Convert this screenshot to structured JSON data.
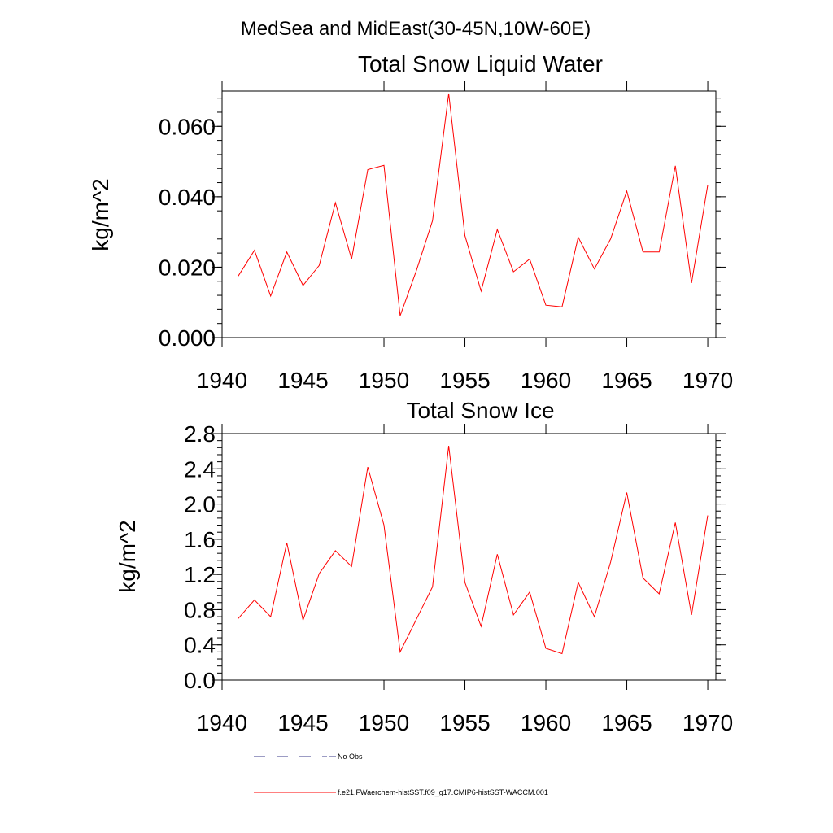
{
  "figure": {
    "main_title": "MedSea and MidEast(30-45N,10W-60E)"
  },
  "colors": {
    "model_line": "#ff0000",
    "obs_line": "#3a3a8a",
    "axis": "#000000"
  },
  "legend": {
    "placement": "bottom",
    "entries": [
      {
        "label": "No Obs",
        "style": "dashed",
        "color": "#3a3a8a"
      },
      {
        "label": "f.e21.FWaerchem-histSST.f09_g17.CMIP6-histSST-WACCM.001",
        "style": "solid",
        "color": "#ff0000"
      }
    ]
  },
  "chart_data": [
    {
      "type": "line",
      "title": "Total Snow Liquid Water",
      "xlabel": "",
      "ylabel": "kg/m^2",
      "xlim": [
        1940,
        1970.5
      ],
      "ylim": [
        0,
        0.07
      ],
      "xticks": [
        1940,
        1945,
        1950,
        1955,
        1960,
        1965,
        1970
      ],
      "xtick_labels": [
        "1940",
        "1945",
        "1950",
        "1955",
        "1960",
        "1965",
        "1970"
      ],
      "yticks": [
        0,
        0.02,
        0.04,
        0.06
      ],
      "ytick_labels": [
        "0.000",
        "0.020",
        "0.040",
        "0.060"
      ],
      "grid": false,
      "x": [
        1941,
        1942,
        1943,
        1944,
        1945,
        1946,
        1947,
        1948,
        1949,
        1950,
        1951,
        1952,
        1953,
        1954,
        1955,
        1956,
        1957,
        1958,
        1959,
        1960,
        1961,
        1962,
        1963,
        1964,
        1965,
        1966,
        1967,
        1968,
        1969,
        1970
      ],
      "series": [
        {
          "values": [
            0.0175,
            0.0248,
            0.0118,
            0.0243,
            0.0148,
            0.0205,
            0.0383,
            0.0223,
            0.0477,
            0.0489,
            0.0062,
            0.019,
            0.0332,
            0.0693,
            0.029,
            0.0132,
            0.0307,
            0.0187,
            0.0223,
            0.0092,
            0.0087,
            0.0285,
            0.0195,
            0.028,
            0.0416,
            0.0243,
            0.0243,
            0.0488,
            0.0155,
            0.0433
          ]
        }
      ]
    },
    {
      "type": "line",
      "title": "Total Snow Ice",
      "xlabel": "",
      "ylabel": "kg/m^2",
      "xlim": [
        1940,
        1970.5
      ],
      "ylim": [
        0,
        2.8
      ],
      "xticks": [
        1940,
        1945,
        1950,
        1955,
        1960,
        1965,
        1970
      ],
      "xtick_labels": [
        "1940",
        "1945",
        "1950",
        "1955",
        "1960",
        "1965",
        "1970"
      ],
      "yticks": [
        0,
        0.4,
        0.8,
        1.2,
        1.6,
        2.0,
        2.4,
        2.8
      ],
      "ytick_labels": [
        "0.0",
        "0.4",
        "0.8",
        "1.2",
        "1.6",
        "2.0",
        "2.4",
        "2.8"
      ],
      "grid": false,
      "x": [
        1941,
        1942,
        1943,
        1944,
        1945,
        1946,
        1947,
        1948,
        1949,
        1950,
        1951,
        1952,
        1953,
        1954,
        1955,
        1956,
        1957,
        1958,
        1959,
        1960,
        1961,
        1962,
        1963,
        1964,
        1965,
        1966,
        1967,
        1968,
        1969,
        1970
      ],
      "series": [
        {
          "values": [
            0.7,
            0.91,
            0.72,
            1.56,
            0.68,
            1.21,
            1.47,
            1.29,
            2.42,
            1.76,
            0.32,
            0.69,
            1.06,
            2.66,
            1.11,
            0.61,
            1.43,
            0.74,
            1.0,
            0.36,
            0.3,
            1.11,
            0.72,
            1.34,
            2.13,
            1.16,
            0.98,
            1.79,
            0.74,
            1.87
          ]
        }
      ]
    }
  ]
}
